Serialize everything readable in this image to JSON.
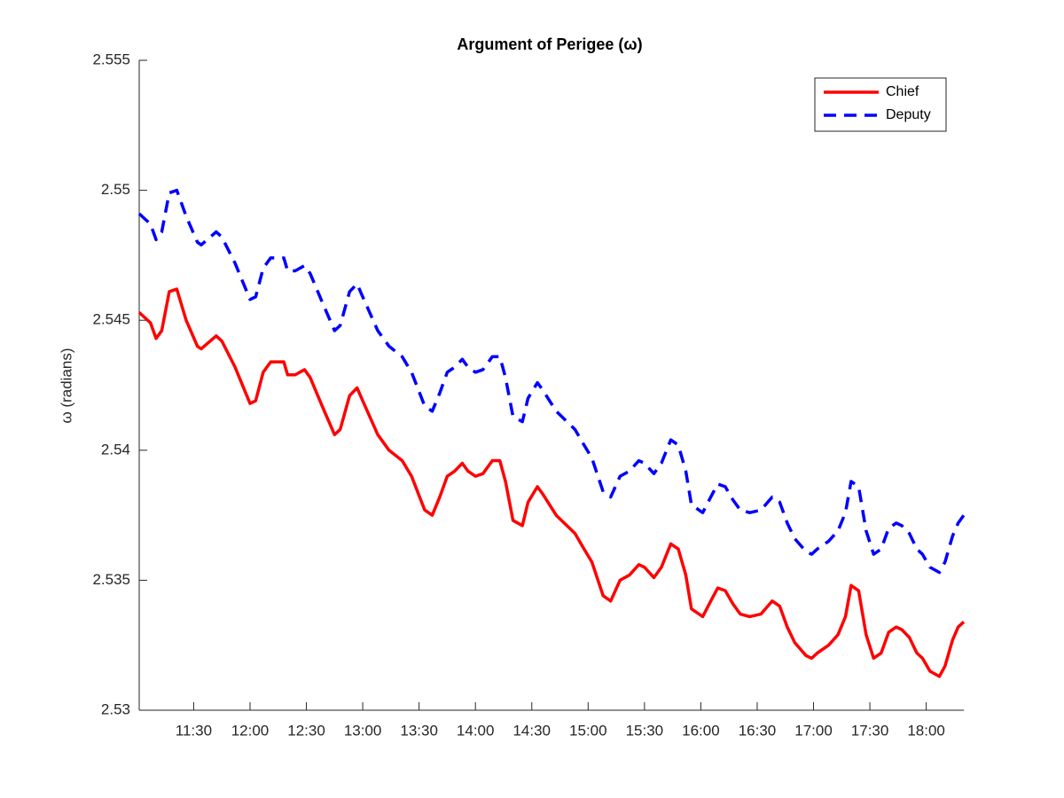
{
  "chart_data": {
    "type": "line",
    "title": "Argument of Perigee (ω)",
    "y_label": "ω (radians)",
    "x": [
      "11:01",
      "11:07",
      "11:10",
      "11:13",
      "11:17",
      "11:21",
      "11:26",
      "11:32",
      "11:34",
      "11:42",
      "11:45",
      "11:52",
      "12:00",
      "12:03",
      "12:07",
      "12:11",
      "12:18",
      "12:20",
      "12:24",
      "12:29",
      "12:32",
      "12:39",
      "12:45",
      "12:48",
      "12:53",
      "12:57",
      "13:00",
      "13:08",
      "13:14",
      "13:21",
      "13:26",
      "13:33",
      "13:37",
      "13:41",
      "13:45",
      "13:49",
      "13:53",
      "13:56",
      "14:00",
      "14:04",
      "14:09",
      "14:13",
      "14:16",
      "14:20",
      "14:25",
      "14:28",
      "14:33",
      "14:36",
      "14:43",
      "14:53",
      "14:57",
      "15:02",
      "15:08",
      "15:12",
      "15:17",
      "15:22",
      "15:27",
      "15:30",
      "15:35",
      "15:39",
      "15:44",
      "15:48",
      "15:52",
      "15:55",
      "16:01",
      "16:06",
      "16:09",
      "16:13",
      "16:17",
      "16:21",
      "16:26",
      "16:32",
      "16:38",
      "16:42",
      "16:46",
      "16:50",
      "16:56",
      "16:59",
      "17:02",
      "17:08",
      "17:13",
      "17:17",
      "17:20",
      "17:24",
      "17:28",
      "17:32",
      "17:36",
      "17:40",
      "17:44",
      "17:47",
      "17:51",
      "17:55",
      "17:58",
      "18:02",
      "18:07",
      "18:10",
      "18:14",
      "18:17",
      "18:20"
    ],
    "series": [
      {
        "name": "Chief",
        "color": "#ff0000",
        "style": "solid",
        "values": [
          2.5453,
          2.5449,
          2.5443,
          2.5446,
          2.5461,
          2.5462,
          2.545,
          2.544,
          2.5439,
          2.5444,
          2.5442,
          2.5432,
          2.5418,
          2.5419,
          2.543,
          2.5434,
          2.5434,
          2.5429,
          2.5429,
          2.5431,
          2.5428,
          2.5416,
          2.5406,
          2.5408,
          2.5421,
          2.5424,
          2.5419,
          2.5406,
          2.54,
          2.5396,
          2.539,
          2.5377,
          2.5375,
          2.5382,
          2.539,
          2.5392,
          2.5395,
          2.5392,
          2.539,
          2.5391,
          2.5396,
          2.5396,
          2.5388,
          2.5373,
          2.5371,
          2.538,
          2.5386,
          2.5383,
          2.5375,
          2.5368,
          2.5363,
          2.5357,
          2.5344,
          2.5342,
          2.535,
          2.5352,
          2.5356,
          2.5355,
          2.5351,
          2.5355,
          2.5364,
          2.5362,
          2.5352,
          2.5339,
          2.5336,
          2.5343,
          2.5347,
          2.5346,
          2.5341,
          2.5337,
          2.5336,
          2.5337,
          2.5342,
          2.534,
          2.5332,
          2.5326,
          2.5321,
          2.532,
          2.5322,
          2.5325,
          2.5329,
          2.5336,
          2.5348,
          2.5346,
          2.5329,
          2.532,
          2.5322,
          2.533,
          2.5332,
          2.5331,
          2.5328,
          2.5322,
          2.532,
          2.5315,
          2.5313,
          2.5317,
          2.5327,
          2.5332,
          2.5334
        ]
      },
      {
        "name": "Deputy",
        "color": "#0000ff",
        "style": "dashed",
        "values": [
          2.5491,
          2.5487,
          2.5481,
          2.5484,
          2.5499,
          2.55,
          2.549,
          2.548,
          2.5479,
          2.5484,
          2.5482,
          2.5472,
          2.5458,
          2.5459,
          2.547,
          2.5474,
          2.5474,
          2.5469,
          2.5469,
          2.5471,
          2.5468,
          2.5456,
          2.5446,
          2.5448,
          2.5461,
          2.5464,
          2.5459,
          2.5446,
          2.544,
          2.5436,
          2.543,
          2.5417,
          2.5415,
          2.5422,
          2.543,
          2.5432,
          2.5435,
          2.5432,
          2.543,
          2.5431,
          2.5436,
          2.5436,
          2.5428,
          2.5413,
          2.5411,
          2.542,
          2.5426,
          2.5423,
          2.5415,
          2.5408,
          2.5403,
          2.5397,
          2.5384,
          2.5382,
          2.539,
          2.5392,
          2.5396,
          2.5395,
          2.5391,
          2.5395,
          2.5404,
          2.5402,
          2.5392,
          2.5379,
          2.5376,
          2.5383,
          2.5387,
          2.5386,
          2.5381,
          2.5377,
          2.5376,
          2.5377,
          2.5382,
          2.538,
          2.5372,
          2.5366,
          2.5361,
          2.536,
          2.5362,
          2.5365,
          2.5369,
          2.5376,
          2.5388,
          2.5386,
          2.5369,
          2.536,
          2.5362,
          2.537,
          2.5372,
          2.5371,
          2.5368,
          2.5362,
          2.536,
          2.5355,
          2.5353,
          2.5357,
          2.5367,
          2.5372,
          2.5375
        ]
      }
    ],
    "xlim": [
      "11:01",
      "18:20"
    ],
    "xticks": [
      "11:30",
      "12:00",
      "12:30",
      "13:00",
      "13:30",
      "14:00",
      "14:30",
      "15:00",
      "15:30",
      "16:00",
      "16:30",
      "17:00",
      "17:30",
      "18:00"
    ],
    "ylim": [
      2.53,
      2.555
    ],
    "yticks": [
      2.53,
      2.535,
      2.54,
      2.545,
      2.55,
      2.555
    ],
    "grid": false,
    "legend": "northeast"
  }
}
